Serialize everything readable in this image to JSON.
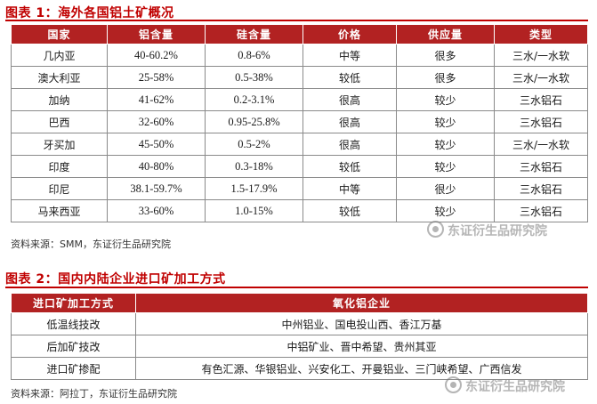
{
  "figure1": {
    "title": "图表 1：海外各国铝土矿概况",
    "headers": [
      "国家",
      "铝含量",
      "硅含量",
      "价格",
      "供应量",
      "类型"
    ],
    "rows": [
      [
        "几内亚",
        "40-60.2%",
        "0.8-6%",
        "中等",
        "很多",
        "三水/一水软"
      ],
      [
        "澳大利亚",
        "25-58%",
        "0.5-38%",
        "较低",
        "很多",
        "三水/一水软"
      ],
      [
        "加纳",
        "41-62%",
        "0.2-3.1%",
        "很高",
        "较少",
        "三水铝石"
      ],
      [
        "巴西",
        "32-60%",
        "0.95-25.8%",
        "很高",
        "较少",
        "三水铝石"
      ],
      [
        "牙买加",
        "45-50%",
        "0.5-2%",
        "很高",
        "较少",
        "三水/一水软"
      ],
      [
        "印度",
        "40-80%",
        "0.3-18%",
        "较低",
        "较少",
        "三水铝石"
      ],
      [
        "印尼",
        "38.1-59.7%",
        "1.5-17.9%",
        "中等",
        "很少",
        "三水铝石"
      ],
      [
        "马来西亚",
        "33-60%",
        "1.0-15%",
        "较低",
        "较少",
        "三水铝石"
      ]
    ],
    "source": "资料来源：SMM，东证衍生品研究院"
  },
  "figure2": {
    "title": "图表 2：国内内陆企业进口矿加工方式",
    "headers": [
      "进口矿加工方式",
      "氧化铝企业"
    ],
    "rows": [
      [
        "低温线技改",
        "中州铝业、国电投山西、香江万基"
      ],
      [
        "后加矿技改",
        "中铝矿业、晋中希望、贵州其亚"
      ],
      [
        "进口矿掺配",
        "有色汇源、华银铝业、兴安化工、开曼铝业、三门峡希望、广西信发"
      ]
    ],
    "source": "资料来源：阿拉丁，东证衍生品研究院"
  },
  "watermark": {
    "text": "东证衍生品研究院"
  },
  "colors": {
    "title": "#c00000",
    "header_bg": "#b22222",
    "header_text": "#ffffff",
    "border": "#8a8a8a"
  }
}
